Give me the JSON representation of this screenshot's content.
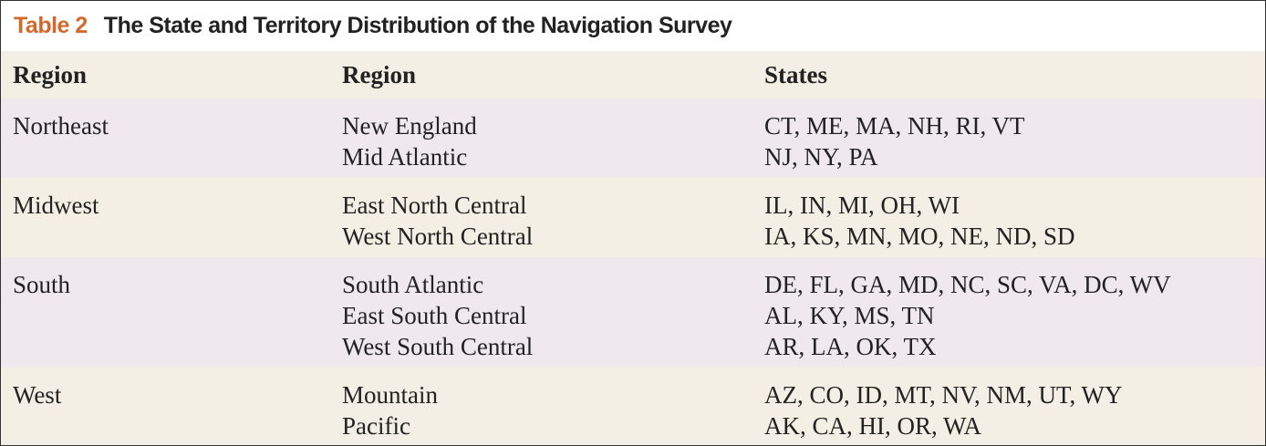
{
  "table": {
    "title_label": "Table 2",
    "title": "The State and Territory Distribution of the Navigation Survey",
    "headers": [
      "Region",
      "Region",
      "States"
    ],
    "groups": [
      {
        "region": "Northeast",
        "subregions": [
          {
            "name": "New England",
            "states": "CT, ME, MA, NH, RI, VT"
          },
          {
            "name": "Mid Atlantic",
            "states": "NJ, NY, PA"
          }
        ]
      },
      {
        "region": "Midwest",
        "subregions": [
          {
            "name": "East North Central",
            "states": "IL, IN, MI, OH, WI"
          },
          {
            "name": "West North Central",
            "states": "IA, KS, MN, MO, NE, ND, SD"
          }
        ]
      },
      {
        "region": "South",
        "subregions": [
          {
            "name": "South Atlantic",
            "states": "DE, FL, GA, MD, NC, SC, VA, DC, WV"
          },
          {
            "name": "East South Central",
            "states": "AL, KY, MS, TN"
          },
          {
            "name": "West South Central",
            "states": "AR, LA, OK, TX"
          }
        ]
      },
      {
        "region": "West",
        "subregions": [
          {
            "name": "Mountain",
            "states": "AZ, CO, ID, MT, NV, NM, UT, WY"
          },
          {
            "name": "Pacific",
            "states": "AK, CA, HI, OR, WA"
          }
        ]
      }
    ]
  }
}
